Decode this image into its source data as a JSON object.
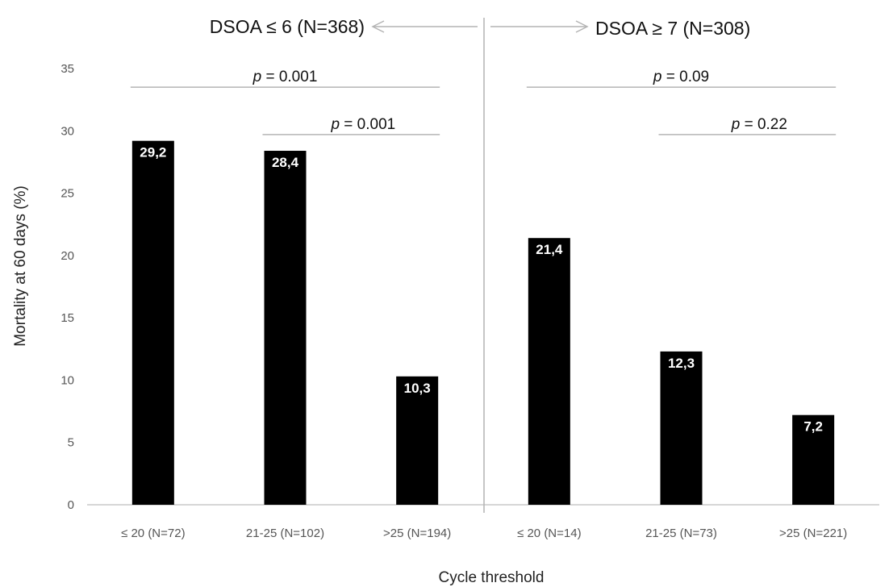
{
  "chart_data": {
    "type": "bar",
    "xlabel": "Cycle threshold",
    "ylabel": "Mortality at 60 days (%)",
    "ylim": [
      0,
      35
    ],
    "yticks": [
      "0",
      "5",
      "10",
      "15",
      "20",
      "25",
      "30",
      "35"
    ],
    "grid": false,
    "categories": [
      "≤ 20 (N=72)",
      "21-25 (N=102)",
      ">25 (N=194)",
      "≤ 20 (N=14)",
      "21-25 (N=73)",
      ">25 (N=221)"
    ],
    "values": [
      29.2,
      28.4,
      10.3,
      21.4,
      12.3,
      7.2
    ],
    "data_labels": [
      "29,2",
      "28,4",
      "10,3",
      "21,4",
      "12,3",
      "7,2"
    ],
    "bar_color": "#000000",
    "groups": [
      {
        "label": "DSOA ≤ 6 (N=368)",
        "categories": [
          0,
          1,
          2
        ]
      },
      {
        "label": "DSOA ≥ 7 (N=308)",
        "categories": [
          3,
          4,
          5
        ]
      }
    ],
    "comparisons": [
      {
        "from": 0,
        "to": 2,
        "value": 33.5,
        "p_symbol": "p",
        "p_text": " = 0.001"
      },
      {
        "from": 1,
        "to": 2,
        "value": 29.7,
        "p_symbol": "p",
        "p_text": " = 0.001"
      },
      {
        "from": 3,
        "to": 5,
        "value": 33.5,
        "p_symbol": "p",
        "p_text": " = 0.09"
      },
      {
        "from": 4,
        "to": 5,
        "value": 29.7,
        "p_symbol": "p",
        "p_text": " = 0.22"
      }
    ]
  }
}
